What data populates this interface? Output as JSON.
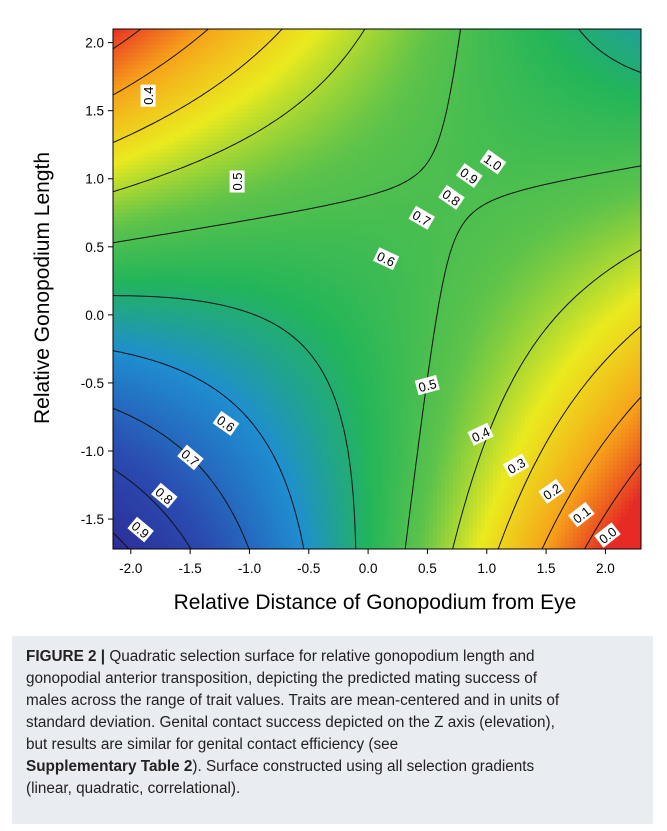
{
  "chart_data": {
    "type": "heatmap",
    "subtype": "contour",
    "xlabel": "Relative Distance of Gonopodium from Eye",
    "ylabel": "Relative Gonopodium Length",
    "xlim": [
      -2.15,
      2.3
    ],
    "ylim": [
      -1.72,
      2.1
    ],
    "x_ticks": [
      -2.0,
      -1.5,
      -1.0,
      -0.5,
      0.0,
      0.5,
      1.0,
      1.5,
      2.0
    ],
    "x_tick_labels": [
      "-2.0",
      "-1.5",
      "-1.0",
      "-0.5",
      "0.0",
      "0.5",
      "1.0",
      "1.5",
      "2.0"
    ],
    "y_ticks": [
      2.0,
      1.5,
      1.0,
      0.5,
      0.0,
      -0.5,
      -1.0,
      -1.5
    ],
    "y_tick_labels": [
      "2.0",
      "1.5",
      "1.0",
      "0.5",
      "0.0",
      "-0.5",
      "-1.0",
      "-1.5"
    ],
    "surface": {
      "z": "0.555 + 0.07*x + 0.04*y - 0.097*x*y + 0.013*x^2 + 0.013*y^2",
      "colormap": [
        "#2d1e8c",
        "#2a4bb0",
        "#1f8ed0",
        "#22b55a",
        "#5ec34a",
        "#eaea1e",
        "#f7a21a",
        "#e62a24"
      ],
      "z_range": [
        0.0,
        1.05
      ]
    },
    "contour_labels": [
      {
        "text": "0.4",
        "x": -1.85,
        "y": 1.61,
        "rotation": -90
      },
      {
        "text": "0.5",
        "x": -1.1,
        "y": 0.98,
        "rotation": -90
      },
      {
        "text": "1.0",
        "x": 1.05,
        "y": 1.12,
        "rotation": 35
      },
      {
        "text": "0.9",
        "x": 0.85,
        "y": 1.02,
        "rotation": 35
      },
      {
        "text": "0.8",
        "x": 0.7,
        "y": 0.86,
        "rotation": 35
      },
      {
        "text": "0.7",
        "x": 0.45,
        "y": 0.71,
        "rotation": 30
      },
      {
        "text": "0.6",
        "x": 0.15,
        "y": 0.41,
        "rotation": 25
      },
      {
        "text": "0.5",
        "x": 0.5,
        "y": -0.52,
        "rotation": -15
      },
      {
        "text": "0.4",
        "x": 0.95,
        "y": -0.88,
        "rotation": -25
      },
      {
        "text": "0.3",
        "x": 1.25,
        "y": -1.11,
        "rotation": -30
      },
      {
        "text": "0.2",
        "x": 1.55,
        "y": -1.3,
        "rotation": -35
      },
      {
        "text": "0.1",
        "x": 1.8,
        "y": -1.47,
        "rotation": -38
      },
      {
        "text": "0.0",
        "x": 2.02,
        "y": -1.62,
        "rotation": -38
      },
      {
        "text": "0.6",
        "x": -1.2,
        "y": -0.8,
        "rotation": 35
      },
      {
        "text": "0.7",
        "x": -1.5,
        "y": -1.05,
        "rotation": 40
      },
      {
        "text": "0.8",
        "x": -1.72,
        "y": -1.33,
        "rotation": 40
      },
      {
        "text": "0.9",
        "x": -1.92,
        "y": -1.58,
        "rotation": 40
      }
    ]
  },
  "caption": {
    "lead": "FIGURE 2 |",
    "line1": "Quadratic selection surface for relative gonopodium length and",
    "line2": "gonopodial anterior transposition, depicting the predicted mating success of",
    "line3": "males across the range of trait values. Traits are mean-centered and in units of",
    "line4": "standard deviation. Genital contact success depicted on the Z axis (elevation),",
    "line5": "but results are similar for genital contact efficiency (see",
    "ref": "Supplementary Table 2",
    "line6_rest": "). Surface constructed using all selection gradients",
    "line7": "(linear, quadratic, correlational)."
  }
}
